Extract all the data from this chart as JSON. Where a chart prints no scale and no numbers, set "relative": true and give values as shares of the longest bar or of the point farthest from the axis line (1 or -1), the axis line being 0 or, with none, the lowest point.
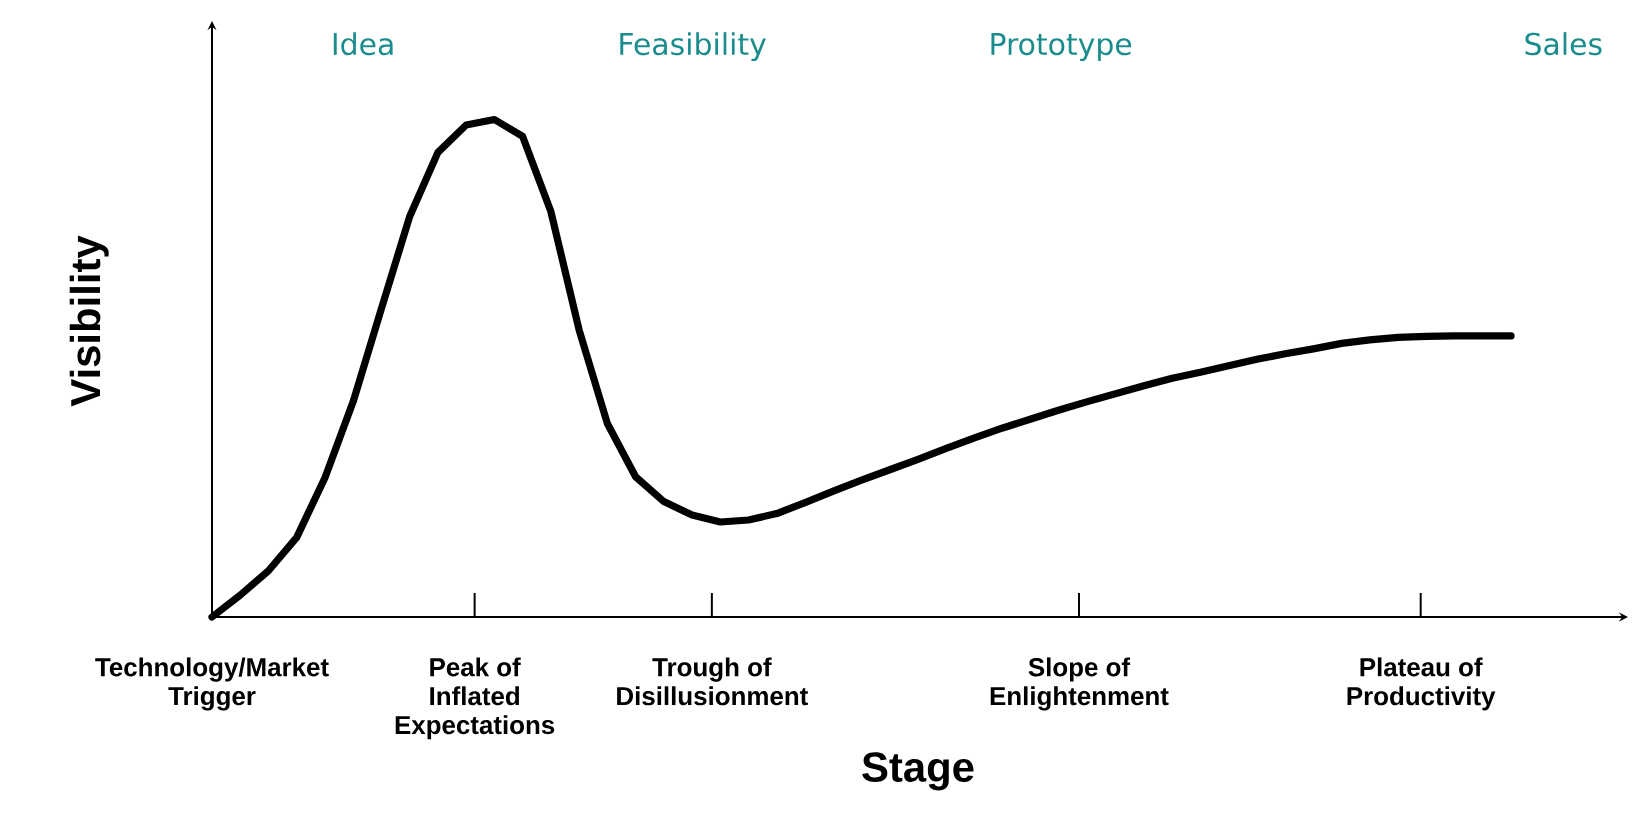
{
  "chart_data": {
    "type": "line",
    "relative": true,
    "xlabel": "Stage",
    "ylabel": "Visibility",
    "color": "#000000",
    "marker": "none",
    "categories": [
      null,
      null,
      null,
      null,
      null,
      null,
      null,
      null,
      null,
      null,
      null,
      null,
      null,
      null,
      null,
      null,
      null,
      null,
      null,
      null,
      null,
      null,
      null,
      null,
      null,
      null,
      null,
      null,
      null,
      null,
      null,
      null,
      null,
      null,
      null,
      null,
      null,
      null,
      null,
      null,
      null,
      null,
      null,
      null,
      null,
      null,
      null
    ],
    "values": [
      0,
      0.044,
      0.093,
      0.16,
      0.28,
      0.433,
      0.62,
      0.805,
      0.934,
      0.989,
      1,
      0.966,
      0.815,
      0.577,
      0.389,
      0.282,
      0.232,
      0.205,
      0.191,
      0.195,
      0.208,
      0.23,
      0.253,
      0.275,
      0.296,
      0.317,
      0.339,
      0.36,
      0.38,
      0.398,
      0.416,
      0.433,
      0.449,
      0.465,
      0.48,
      0.492,
      0.505,
      0.518,
      0.529,
      0.539,
      0.55,
      0.557,
      0.562,
      0.564,
      0.565,
      0.565,
      0.565
    ],
    "annotations": [
      "Technology/Market Trigger",
      "Peak of Inflated Expectations",
      "Trough of Disillusionment",
      "Slope of Enlightenment",
      "Plateau of Productivity",
      "Idea",
      "Feasibility",
      "Prototype",
      "Sales"
    ]
  }
}
